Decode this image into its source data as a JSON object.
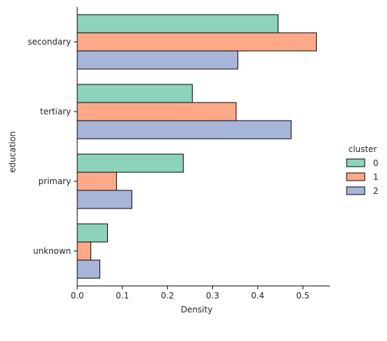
{
  "chart_data": {
    "type": "bar",
    "orientation": "horizontal",
    "categories": [
      "secondary",
      "tertiary",
      "primary",
      "unknown"
    ],
    "series": [
      {
        "name": "0",
        "color": "#8dd3bb",
        "values": [
          0.445,
          0.255,
          0.235,
          0.067
        ]
      },
      {
        "name": "1",
        "color": "#fca98a",
        "values": [
          0.53,
          0.352,
          0.087,
          0.03
        ]
      },
      {
        "name": "2",
        "color": "#a7b5d9",
        "values": [
          0.356,
          0.474,
          0.121,
          0.05
        ]
      }
    ],
    "xlabel": "Density",
    "ylabel": "education",
    "xlim": [
      0,
      0.56
    ],
    "xticks": [
      "0.0",
      "0.1",
      "0.2",
      "0.3",
      "0.4",
      "0.5"
    ],
    "xtick_values": [
      0.0,
      0.1,
      0.2,
      0.3,
      0.4,
      0.5
    ],
    "grid": false,
    "legend": {
      "title": "cluster",
      "placement": "right",
      "labels": [
        "0",
        "1",
        "2"
      ]
    }
  }
}
